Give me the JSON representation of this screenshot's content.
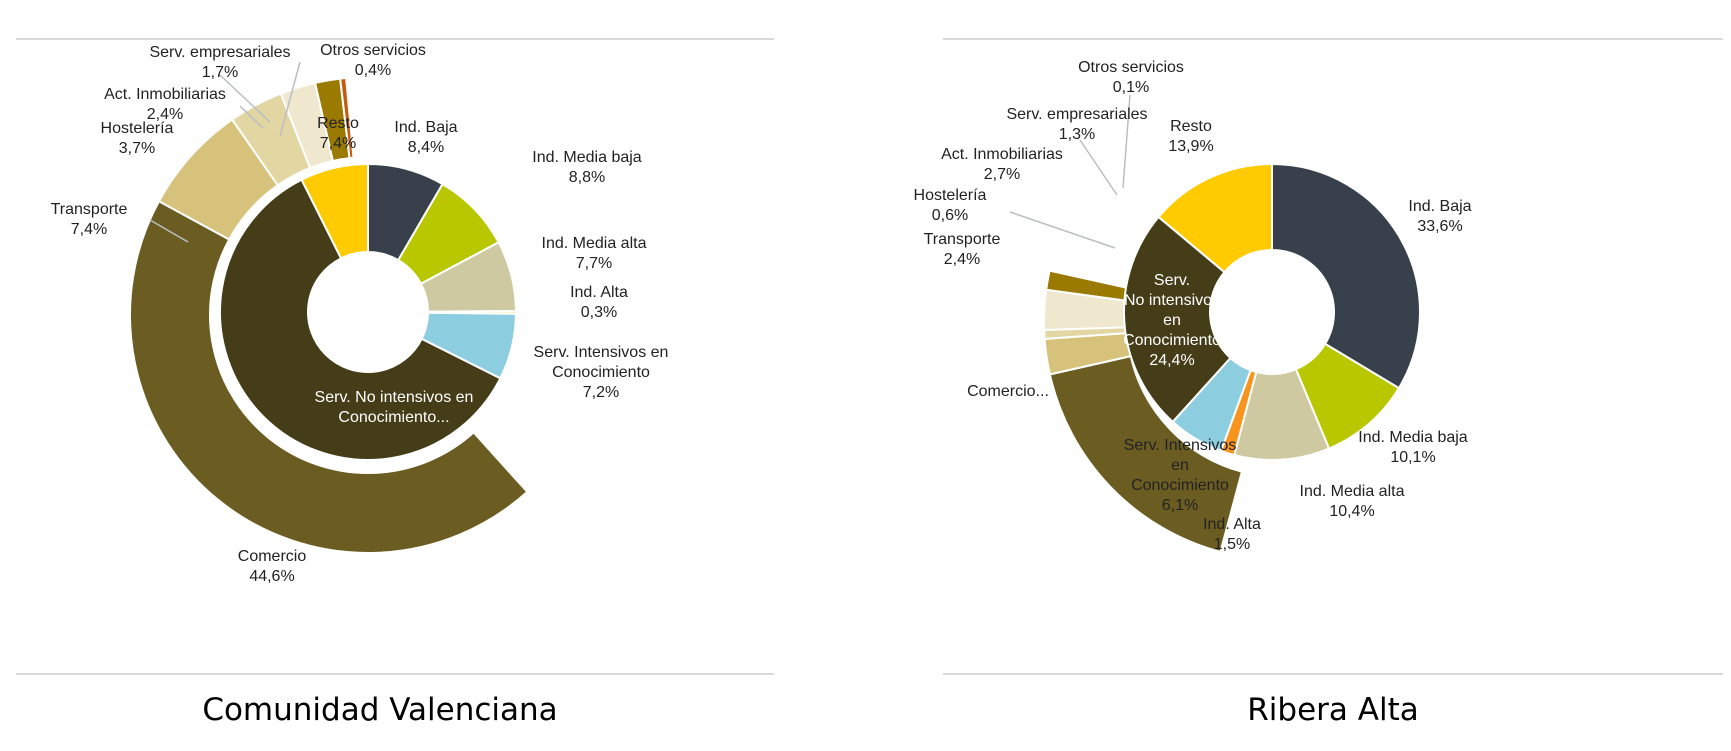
{
  "colors": {
    "ind_baja": "#37404b",
    "ind_media_baja": "#b8c700",
    "ind_media_alta": "#cec9a1",
    "ind_alta": "#f7941d",
    "serv_intensivos": "#8ccde0",
    "serv_no_intensivos": "#453d18",
    "resto": "#fecb00",
    "comercio": "#6b5d22",
    "transporte": "#d6c27a",
    "hosteleria": "#e2d6a2",
    "act_inmobiliarias": "#efe8cf",
    "serv_empresariales": "#9a7a00",
    "otros_servicios": "#c55a11",
    "ind_alta_left": "#f2e49b"
  },
  "chart_data": [
    {
      "type": "pie",
      "subtype": "pie-of-pie doughnut",
      "title": "Comunidad Valenciana",
      "main": [
        {
          "label": "Ind. Baja",
          "value_label": "8,4%",
          "value": 8.4,
          "color_key": "ind_baja"
        },
        {
          "label": "Ind. Media baja",
          "value_label": "8,8%",
          "value": 8.8,
          "color_key": "ind_media_baja"
        },
        {
          "label": "Ind. Media alta",
          "value_label": "7,7%",
          "value": 7.7,
          "color_key": "ind_media_alta"
        },
        {
          "label": "Ind. Alta",
          "value_label": "0,3%",
          "value": 0.3,
          "color_key": "ind_alta_left"
        },
        {
          "label": "Serv. Intensivos en Conocimiento",
          "value_label": "7,2%",
          "value": 7.2,
          "color_key": "serv_intensivos"
        },
        {
          "label": "Serv. No intensivos en Conocimiento...",
          "value_label": "",
          "value": 60.2,
          "color_key": "serv_no_intensivos"
        },
        {
          "label": "Resto",
          "value_label": "7,4%",
          "value": 7.4,
          "color_key": "resto"
        }
      ],
      "breakdown": [
        {
          "label": "Comercio",
          "value_label": "44,6%",
          "value": 44.6,
          "color_key": "comercio"
        },
        {
          "label": "Transporte",
          "value_label": "7,4%",
          "value": 7.4,
          "color_key": "transporte"
        },
        {
          "label": "Hostelería",
          "value_label": "3,7%",
          "value": 3.7,
          "color_key": "hosteleria"
        },
        {
          "label": "Act. Inmobiliarias",
          "value_label": "2,4%",
          "value": 2.4,
          "color_key": "act_inmobiliarias"
        },
        {
          "label": "Serv. empresariales",
          "value_label": "1,7%",
          "value": 1.7,
          "color_key": "serv_empresariales"
        },
        {
          "label": "Otros servicios",
          "value_label": "0,4%",
          "value": 0.4,
          "color_key": "otros_servicios"
        }
      ]
    },
    {
      "type": "pie",
      "subtype": "pie-of-pie doughnut",
      "title": "Ribera Alta",
      "main": [
        {
          "label": "Ind. Baja",
          "value_label": "33,6%",
          "value": 33.6,
          "color_key": "ind_baja"
        },
        {
          "label": "Ind. Media baja",
          "value_label": "10,1%",
          "value": 10.1,
          "color_key": "ind_media_baja"
        },
        {
          "label": "Ind. Media alta",
          "value_label": "10,4%",
          "value": 10.4,
          "color_key": "ind_media_alta"
        },
        {
          "label": "Ind. Alta",
          "value_label": "1,5%",
          "value": 1.5,
          "color_key": "ind_alta"
        },
        {
          "label": "Serv. Intensivos en Conocimiento",
          "value_label": "6,1%",
          "value": 6.1,
          "color_key": "serv_intensivos"
        },
        {
          "label": "Serv. No intensivos en Conocimiento",
          "value_label": "24,4%",
          "value": 24.4,
          "color_key": "serv_no_intensivos"
        },
        {
          "label": "Resto",
          "value_label": "13,9%",
          "value": 13.9,
          "color_key": "resto"
        }
      ],
      "breakdown": [
        {
          "label": "Comercio...",
          "value_label": "",
          "value": 17.3,
          "color_key": "comercio"
        },
        {
          "label": "Transporte",
          "value_label": "2,4%",
          "value": 2.4,
          "color_key": "transporte"
        },
        {
          "label": "Hostelería",
          "value_label": "0,6%",
          "value": 0.6,
          "color_key": "hosteleria"
        },
        {
          "label": "Act. Inmobiliarias",
          "value_label": "2,7%",
          "value": 2.7,
          "color_key": "act_inmobiliarias"
        },
        {
          "label": "Serv. empresariales",
          "value_label": "1,3%",
          "value": 1.3,
          "color_key": "serv_empresariales"
        },
        {
          "label": "Otros servicios",
          "value_label": "0,1%",
          "value": 0.1,
          "color_key": "otros_servicios"
        }
      ]
    }
  ]
}
